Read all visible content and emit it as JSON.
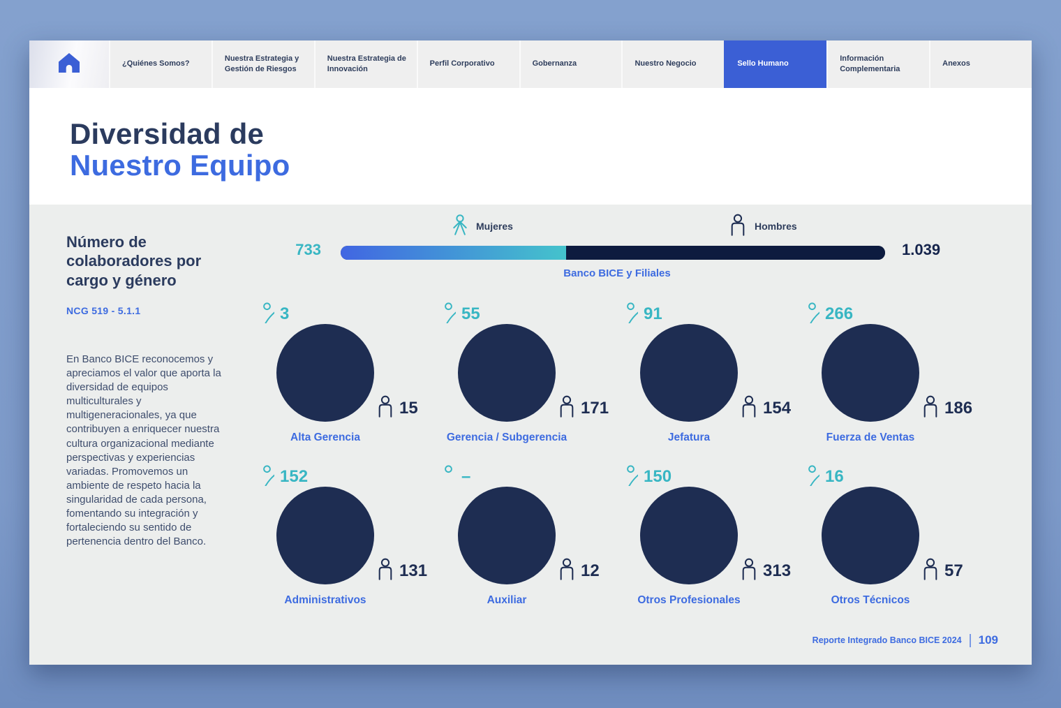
{
  "nav": {
    "tabs": [
      {
        "label": "¿Quiénes Somos?",
        "active": false
      },
      {
        "label": "Nuestra Estrategia y Gestión de Riesgos",
        "active": false
      },
      {
        "label": "Nuestra Estrategia de Innovación",
        "active": false
      },
      {
        "label": "Perfil Corporativo",
        "active": false
      },
      {
        "label": "Gobernanza",
        "active": false
      },
      {
        "label": "Nuestro Negocio",
        "active": false
      },
      {
        "label": "Sello Humano",
        "active": true
      },
      {
        "label": "Información Complementaria",
        "active": false
      },
      {
        "label": "Anexos",
        "active": false
      }
    ]
  },
  "header": {
    "title_line1": "Diversidad de",
    "title_line2": "Nuestro Equipo"
  },
  "sidebar": {
    "heading": "Número de colaboradores por cargo y género",
    "reference": "NCG 519 - 5.1.1",
    "paragraph": "En Banco BICE reconocemos y apreciamos el valor que aporta la diversidad de equipos multiculturales y multigeneracionales, ya que contribuyen a enriquecer nuestra cultura organizacional mediante perspectivas y experiencias variadas. Promovemos un ambiente de respeto hacia la singularidad de cada persona, fomentando su integración y fortaleciendo su sentido de pertenencia dentro del Banco."
  },
  "totals_bar": {
    "legend_mujeres": "Mujeres",
    "legend_hombres": "Hombres",
    "mujeres_value": "733",
    "hombres_value": "1.039",
    "group_label": "Banco BICE y Filiales"
  },
  "pies": [
    {
      "label": "Alta Gerencia",
      "mujeres": "3",
      "hombres": "15"
    },
    {
      "label": "Gerencia / Subgerencia",
      "mujeres": "55",
      "hombres": "171"
    },
    {
      "label": "Jefatura",
      "mujeres": "91",
      "hombres": "154"
    },
    {
      "label": "Fuerza de Ventas",
      "mujeres": "266",
      "hombres": "186"
    },
    {
      "label": "Administrativos",
      "mujeres": "152",
      "hombres": "131"
    },
    {
      "label": "Auxiliar",
      "mujeres": "–",
      "hombres": "12"
    },
    {
      "label": "Otros Profesionales",
      "mujeres": "150",
      "hombres": "313"
    },
    {
      "label": "Otros Técnicos",
      "mujeres": "16",
      "hombres": "57"
    }
  ],
  "footer": {
    "report_label": "Reporte Integrado Banco BICE 2024",
    "page_number": "109"
  },
  "colors": {
    "accent_blue": "#3d6be0",
    "active_tab": "#3b5fd5",
    "teal": "#38b6c3",
    "navy_pie": "#1e2d52",
    "navy_bar": "#0d1b3f",
    "women_gradient_start": "#4166e2",
    "women_gradient_end": "#44c3cc",
    "page_background": "#7f9cca",
    "content_background": "#eceeed"
  },
  "chart_data": {
    "type": "pie",
    "title": "Número de colaboradores por cargo y género",
    "legend": [
      "Mujeres",
      "Hombres"
    ],
    "group_total": {
      "label": "Banco BICE y Filiales",
      "mujeres": 733,
      "hombres": 1039
    },
    "categories": [
      {
        "label": "Alta Gerencia",
        "mujeres": 3,
        "hombres": 15
      },
      {
        "label": "Gerencia / Subgerencia",
        "mujeres": 55,
        "hombres": 171
      },
      {
        "label": "Jefatura",
        "mujeres": 91,
        "hombres": 154
      },
      {
        "label": "Fuerza de Ventas",
        "mujeres": 266,
        "hombres": 186
      },
      {
        "label": "Administrativos",
        "mujeres": 152,
        "hombres": 131
      },
      {
        "label": "Auxiliar",
        "mujeres": 0,
        "hombres": 12
      },
      {
        "label": "Otros Profesionales",
        "mujeres": 150,
        "hombres": 313
      },
      {
        "label": "Otros Técnicos",
        "mujeres": 16,
        "hombres": 57
      }
    ]
  }
}
